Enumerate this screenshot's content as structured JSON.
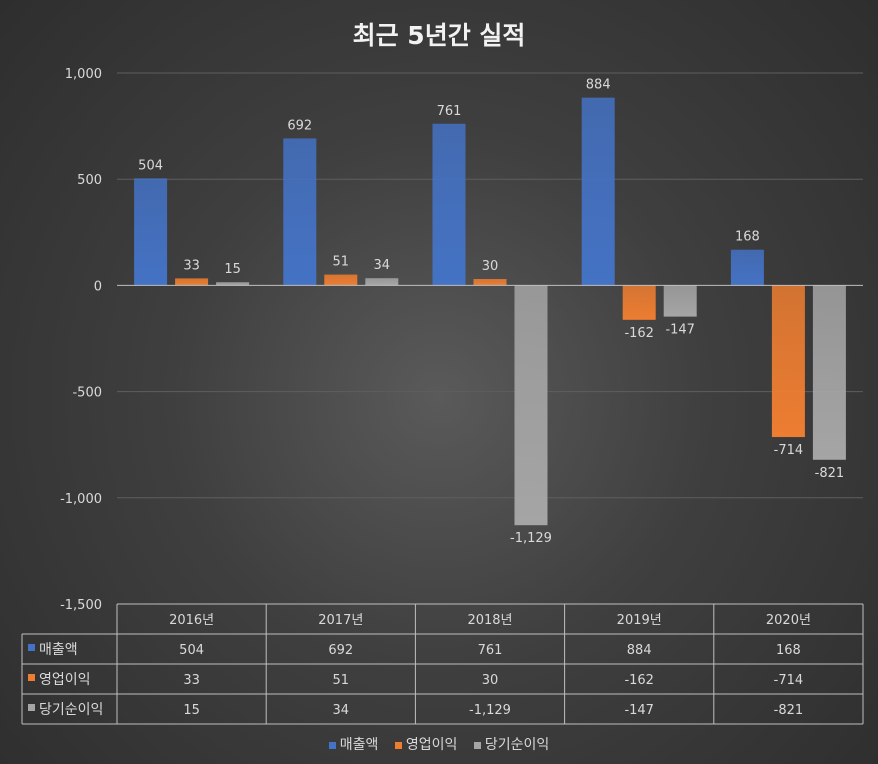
{
  "chart_data": {
    "type": "bar",
    "title": "최근 5년간 실적",
    "categories": [
      "2016년",
      "2017년",
      "2018년",
      "2019년",
      "2020년"
    ],
    "series": [
      {
        "name": "매출액",
        "values": [
          504,
          692,
          761,
          884,
          168
        ],
        "labels": [
          "504",
          "692",
          "761",
          "884",
          "168"
        ],
        "color": "#4472C4"
      },
      {
        "name": "영업이익",
        "values": [
          33,
          51,
          30,
          -162,
          -714
        ],
        "labels": [
          "33",
          "51",
          "30",
          "-162",
          "-714"
        ],
        "color": "#ED7D31"
      },
      {
        "name": "당기순이익",
        "values": [
          15,
          34,
          -1129,
          -147,
          -821
        ],
        "labels": [
          "15",
          "34",
          "-1,129",
          "-147",
          "-821"
        ],
        "color": "#A5A5A5"
      }
    ],
    "ylim": [
      -1500,
      1000
    ],
    "yticks": [
      1000,
      500,
      0,
      -500,
      -1000,
      -1500
    ],
    "ytick_labels": [
      "1,000",
      "500",
      "0",
      "-500",
      "-1,000",
      "-1,500"
    ],
    "grid": true,
    "data_table": true,
    "legend": "bottom"
  }
}
